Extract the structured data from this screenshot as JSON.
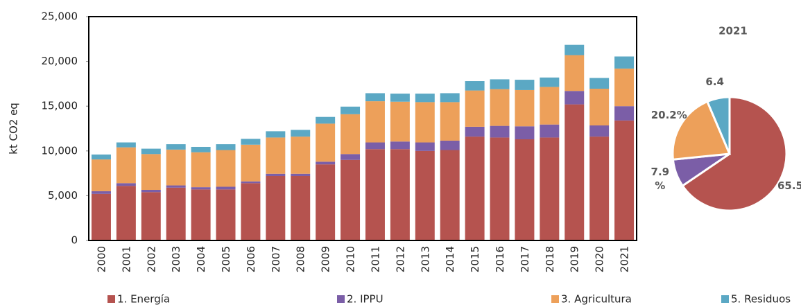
{
  "chart_data": [
    {
      "type": "stacked-bar",
      "y_label": "kt CO2 eq",
      "categories": [
        "2000",
        "2001",
        "2002",
        "2003",
        "2004",
        "2005",
        "2006",
        "2007",
        "2008",
        "2009",
        "2010",
        "2011",
        "2012",
        "2013",
        "2014",
        "2015",
        "2016",
        "2017",
        "2018",
        "2019",
        "2020",
        "2021"
      ],
      "series": [
        {
          "name": "1. Energía",
          "color": "#b5534f",
          "values": [
            5200,
            6100,
            5400,
            5900,
            5700,
            5700,
            6400,
            7200,
            7200,
            8500,
            9000,
            10200,
            10200,
            10000,
            10100,
            11600,
            11500,
            11300,
            11500,
            15200,
            11600,
            13400
          ]
        },
        {
          "name": "2. IPPU",
          "color": "#7b5ea7",
          "values": [
            300,
            300,
            250,
            250,
            250,
            300,
            200,
            250,
            250,
            300,
            650,
            750,
            850,
            950,
            1050,
            1100,
            1300,
            1450,
            1450,
            1500,
            1250,
            1600
          ]
        },
        {
          "name": "3. Agricultura",
          "color": "#eda05a",
          "values": [
            3550,
            4000,
            4000,
            4000,
            3900,
            4100,
            4100,
            4050,
            4150,
            4250,
            4450,
            4600,
            4450,
            4500,
            4300,
            4050,
            4100,
            4050,
            4200,
            4000,
            4100,
            4200
          ]
        },
        {
          "name": "5. Residuos",
          "color": "#5ba8c4",
          "values": [
            550,
            550,
            600,
            600,
            600,
            650,
            650,
            700,
            750,
            750,
            850,
            900,
            900,
            950,
            1000,
            1050,
            1100,
            1150,
            1050,
            1150,
            1200,
            1350
          ]
        }
      ],
      "ylim": [
        0,
        25000
      ],
      "yticks": [
        0,
        {
          "value": 5000,
          "label": "5,000"
        },
        {
          "value": 10000,
          "label": "10,000"
        },
        {
          "value": 15000,
          "label": "15,000"
        },
        {
          "value": 20000,
          "label": "20,000"
        },
        {
          "value": 25000,
          "label": "25,000"
        }
      ],
      "legend": "bottom"
    },
    {
      "type": "pie",
      "title": "2021",
      "values": [
        65.5,
        7.9,
        20.2,
        6.4
      ],
      "value_labels": [
        "65.5",
        "7.9 %",
        "20.2%",
        "6.4"
      ],
      "colors": [
        "#b5534f",
        "#7b5ea7",
        "#eda05a",
        "#5ba8c4"
      ]
    }
  ]
}
